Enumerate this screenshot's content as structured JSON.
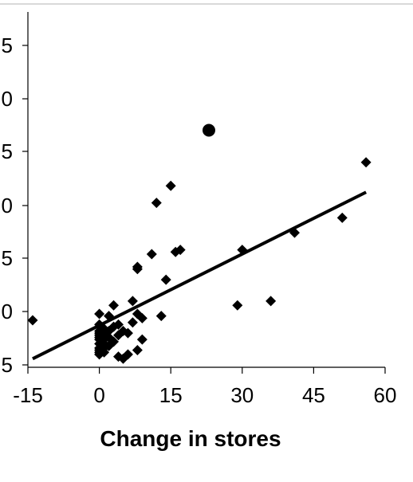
{
  "chart_data": {
    "type": "scatter",
    "title": "",
    "xlabel": "Change in stores",
    "ylabel": "",
    "xlim": [
      -15,
      60
    ],
    "x_ticks": [
      "-15",
      "0",
      "15",
      "30",
      "45",
      "60"
    ],
    "y_ticks": [
      "5",
      "0",
      "5",
      "0",
      "5",
      "0",
      "5"
    ],
    "grid": false,
    "series": [
      {
        "marker": "diamond",
        "color": "#000000",
        "points": [
          [
            -14,
            0.74
          ],
          [
            0,
            0.8
          ],
          [
            0,
            0.7
          ],
          [
            0,
            0.64
          ],
          [
            0,
            0.62
          ],
          [
            0,
            0.6
          ],
          [
            0,
            0.58
          ],
          [
            0,
            0.56
          ],
          [
            0,
            0.52
          ],
          [
            0,
            0.48
          ],
          [
            0,
            0.46
          ],
          [
            0,
            0.44
          ],
          [
            0,
            0.42
          ],
          [
            1,
            0.66
          ],
          [
            1,
            0.6
          ],
          [
            1,
            0.56
          ],
          [
            1,
            0.52
          ],
          [
            1,
            0.48
          ],
          [
            1,
            0.44
          ],
          [
            2,
            0.78
          ],
          [
            2,
            0.64
          ],
          [
            2,
            0.58
          ],
          [
            2,
            0.5
          ],
          [
            3,
            0.88
          ],
          [
            3,
            0.68
          ],
          [
            3,
            0.54
          ],
          [
            4,
            0.7
          ],
          [
            4,
            0.6
          ],
          [
            4,
            0.4
          ],
          [
            5,
            0.64
          ],
          [
            5,
            0.38
          ],
          [
            6,
            0.62
          ],
          [
            6,
            0.42
          ],
          [
            7,
            0.92
          ],
          [
            7,
            0.72
          ],
          [
            8,
            1.22
          ],
          [
            8,
            1.24
          ],
          [
            8,
            0.8
          ],
          [
            8,
            0.46
          ],
          [
            9,
            0.76
          ],
          [
            9,
            0.56
          ],
          [
            11,
            1.36
          ],
          [
            12,
            1.84
          ],
          [
            13,
            0.78
          ],
          [
            14,
            1.12
          ],
          [
            15,
            2.0
          ],
          [
            16,
            1.38
          ],
          [
            17,
            1.4
          ],
          [
            29,
            0.88
          ],
          [
            30,
            1.4
          ],
          [
            36,
            0.92
          ],
          [
            41,
            1.56
          ],
          [
            51,
            1.7
          ],
          [
            56,
            2.22
          ]
        ]
      },
      {
        "marker": "circle",
        "color": "#000000",
        "points": [
          [
            23,
            2.52
          ]
        ]
      }
    ],
    "trendline": {
      "type": "linear",
      "from": [
        -14,
        0.38
      ],
      "to": [
        56,
        1.94
      ]
    }
  }
}
